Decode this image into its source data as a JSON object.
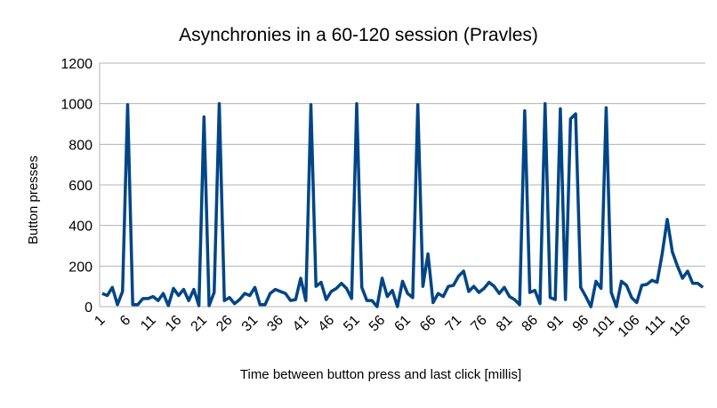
{
  "chart_data": {
    "type": "line",
    "title": "Asynchronies in a 60-120 session (Pravles)",
    "x_label": "Time between button press and last click [millis]",
    "y_label": "Button presses",
    "categories": [
      1,
      null,
      null,
      null,
      null,
      6,
      null,
      null,
      null,
      null,
      11,
      null,
      null,
      null,
      null,
      16,
      null,
      null,
      null,
      null,
      21,
      null,
      null,
      null,
      null,
      26,
      null,
      null,
      null,
      null,
      31,
      null,
      null,
      null,
      null,
      36,
      null,
      null,
      null,
      null,
      41,
      null,
      null,
      null,
      null,
      46,
      null,
      null,
      null,
      null,
      51,
      null,
      null,
      null,
      null,
      56,
      null,
      null,
      null,
      null,
      61,
      null,
      null,
      null,
      null,
      66,
      null,
      null,
      null,
      null,
      71,
      null,
      null,
      null,
      null,
      76,
      null,
      null,
      null,
      null,
      81,
      null,
      null,
      null,
      null,
      86,
      null,
      null,
      null,
      null,
      91,
      null,
      null,
      null,
      null,
      96,
      null,
      null,
      null,
      null,
      101,
      null,
      null,
      null,
      null,
      106,
      null,
      null,
      null,
      null,
      111,
      null,
      null,
      null,
      null,
      116,
      null,
      null,
      null
    ],
    "series": [
      {
        "name": "Button presses",
        "color": "#004586",
        "values": [
          65,
          55,
          95,
          10,
          75,
          995,
          10,
          10,
          40,
          40,
          50,
          30,
          65,
          5,
          90,
          55,
          85,
          30,
          85,
          5,
          935,
          5,
          70,
          1000,
          30,
          45,
          15,
          35,
          65,
          55,
          95,
          10,
          10,
          65,
          85,
          75,
          65,
          30,
          35,
          140,
          30,
          995,
          100,
          120,
          35,
          75,
          90,
          115,
          90,
          40,
          1000,
          95,
          30,
          30,
          0,
          140,
          50,
          80,
          0,
          125,
          65,
          45,
          995,
          100,
          260,
          20,
          65,
          50,
          100,
          105,
          150,
          175,
          75,
          100,
          70,
          90,
          120,
          100,
          65,
          95,
          50,
          35,
          10,
          965,
          70,
          80,
          15,
          1000,
          45,
          35,
          975,
          35,
          925,
          950,
          95,
          50,
          0,
          125,
          90,
          980,
          70,
          0,
          125,
          105,
          45,
          20,
          105,
          110,
          130,
          120,
          260,
          430,
          270,
          200,
          140,
          175,
          115,
          115,
          95
        ]
      }
    ],
    "ylim": [
      0,
      1200
    ],
    "yticks": [
      0,
      200,
      400,
      600,
      800,
      1000,
      1200
    ],
    "grid": true
  }
}
